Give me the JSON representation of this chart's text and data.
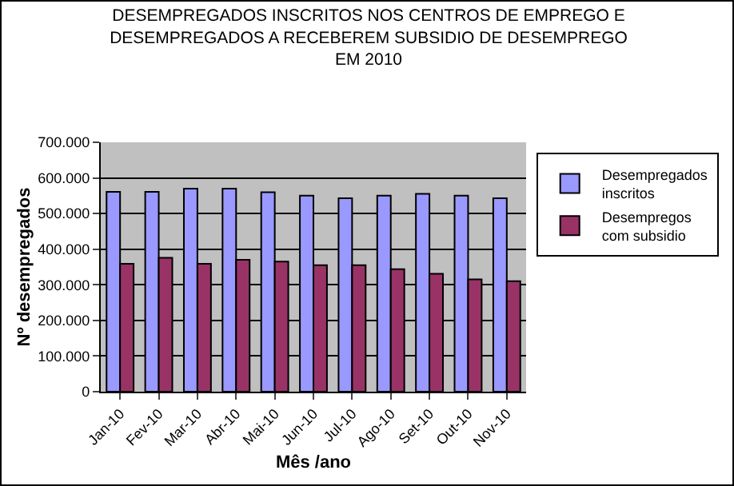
{
  "chart_data": {
    "type": "bar",
    "title": "DESEMPREGADOS INSCRITOS NOS CENTROS DE EMPREGO E\nDESEMPREGADOS A RECEBEREM SUBSIDIO DE DESEMPREGO\nEM 2010",
    "xlabel": "Mês /ano",
    "ylabel": "Nº desempregados",
    "categories": [
      "Jan-10",
      "Fev-10",
      "Mar-10",
      "Abr-10",
      "Mai-10",
      "Jun-10",
      "Jul-10",
      "Ago-10",
      "Set-10",
      "Out-10",
      "Nov-10"
    ],
    "series": [
      {
        "name": "Desempregados\ninscritos",
        "color": "#9999ff",
        "values": [
          561000,
          561000,
          570000,
          570000,
          560000,
          550000,
          543000,
          550000,
          555000,
          550000,
          543000
        ]
      },
      {
        "name": "Desempregos\ncom subsidio",
        "color": "#993366",
        "values": [
          359000,
          376000,
          359000,
          370000,
          365000,
          355000,
          355000,
          344000,
          331000,
          315000,
          310000
        ]
      }
    ],
    "ylim": [
      0,
      700000
    ],
    "yticks": [
      {
        "value": 0,
        "label": "0"
      },
      {
        "value": 100000,
        "label": "100.000"
      },
      {
        "value": 200000,
        "label": "200.000"
      },
      {
        "value": 300000,
        "label": "300.000"
      },
      {
        "value": 400000,
        "label": "400.000"
      },
      {
        "value": 500000,
        "label": "500.000"
      },
      {
        "value": 600000,
        "label": "600.000"
      },
      {
        "value": 700000,
        "label": "700.000"
      }
    ],
    "grid": "y",
    "legend": "right"
  }
}
